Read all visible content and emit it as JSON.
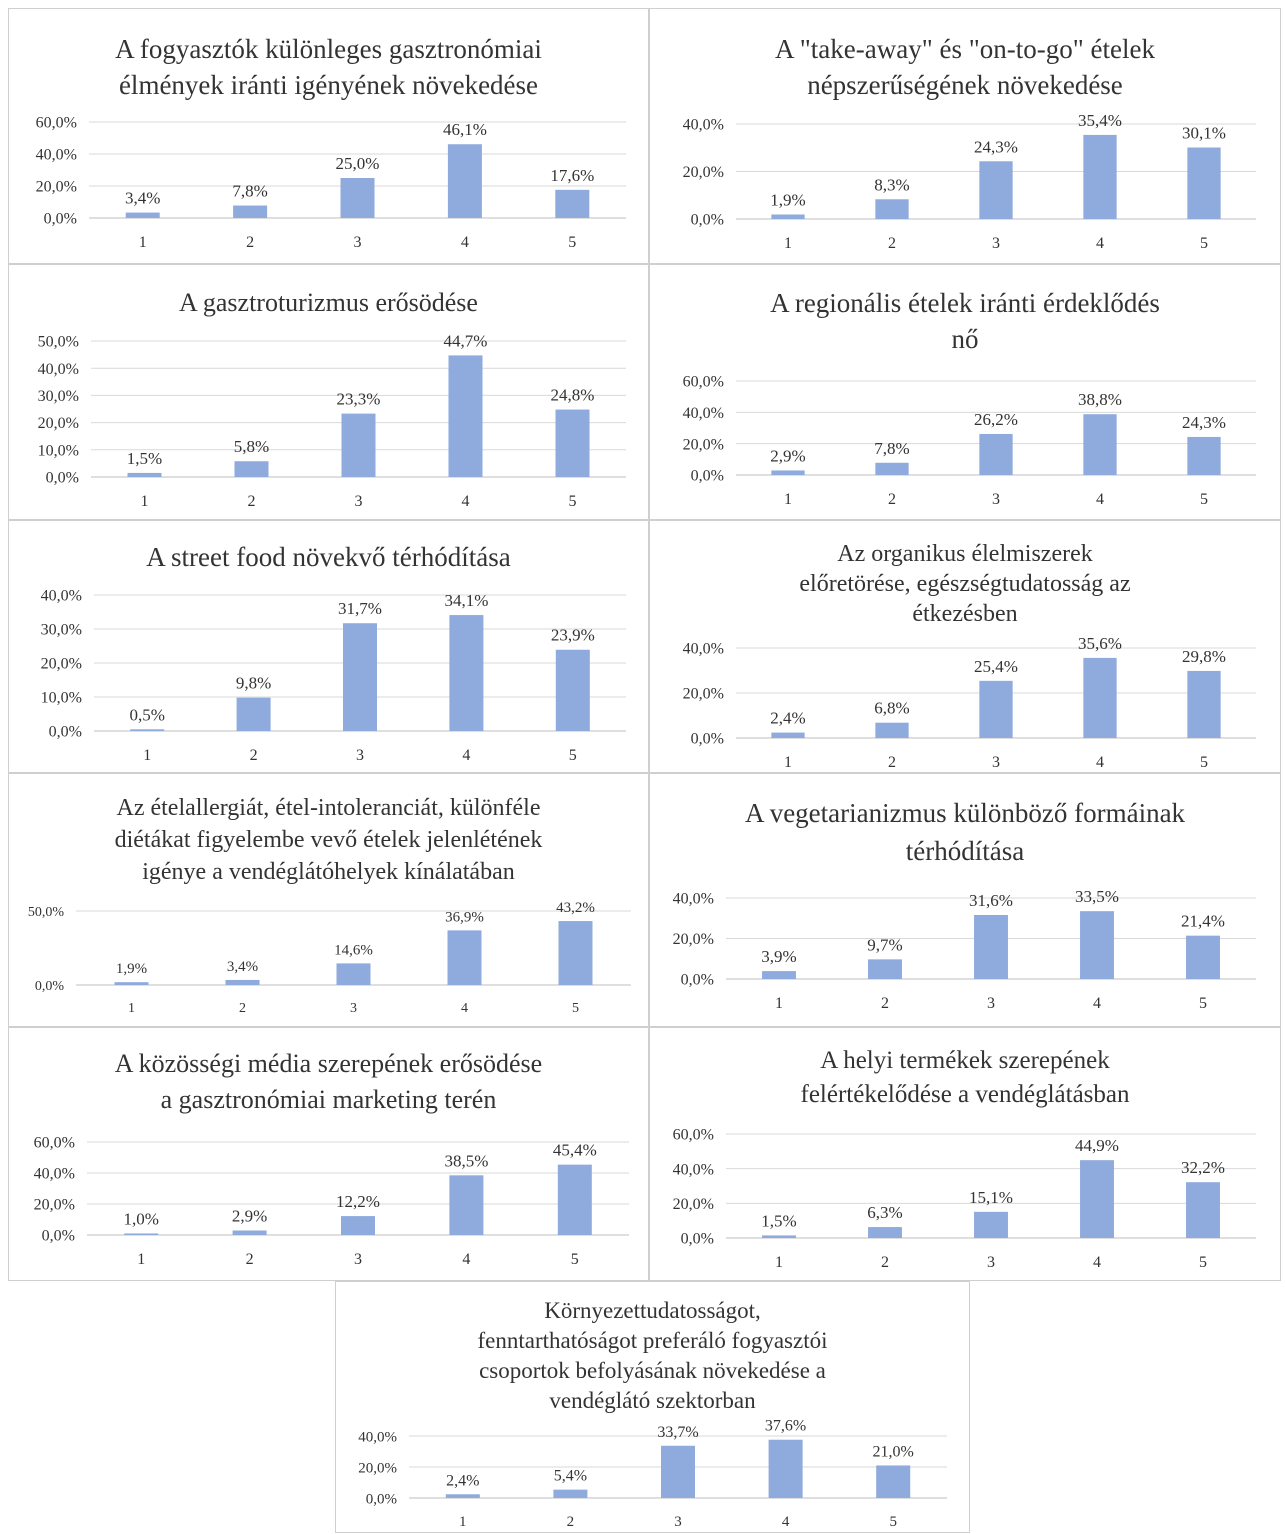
{
  "chart_data": [
    {
      "type": "bar",
      "title_lines": [
        "A fogyasztók különleges gasztronómiai",
        "élmények iránti igényének növekedése"
      ],
      "categories": [
        "1",
        "2",
        "3",
        "4",
        "5"
      ],
      "values": [
        3.4,
        7.8,
        25.0,
        46.1,
        17.6
      ],
      "value_labels": [
        "3,4%",
        "7,8%",
        "25,0%",
        "46,1%",
        "17,6%"
      ],
      "y_ticks": [
        "0,0%",
        "20,0%",
        "40,0%",
        "60,0%"
      ],
      "ylim": [
        0,
        60
      ],
      "grid": true,
      "bar_color": "#8faadc"
    },
    {
      "type": "bar",
      "title_lines": [
        "A \"take-away\"  és \"on-to-go\"  ételek",
        "népszerűségének  növekedése"
      ],
      "categories": [
        "1",
        "2",
        "3",
        "4",
        "5"
      ],
      "values": [
        1.9,
        8.3,
        24.3,
        35.4,
        30.1
      ],
      "value_labels": [
        "1,9%",
        "8,3%",
        "24,3%",
        "35,4%",
        "30,1%"
      ],
      "y_ticks": [
        "0,0%",
        "20,0%",
        "40,0%"
      ],
      "ylim": [
        0,
        40
      ],
      "grid": true,
      "bar_color": "#8faadc"
    },
    {
      "type": "bar",
      "title_lines": [
        "A gasztroturizmus  erősödése"
      ],
      "categories": [
        "1",
        "2",
        "3",
        "4",
        "5"
      ],
      "values": [
        1.5,
        5.8,
        23.3,
        44.7,
        24.8
      ],
      "value_labels": [
        "1,5%",
        "5,8%",
        "23,3%",
        "44,7%",
        "24,8%"
      ],
      "y_ticks": [
        "0,0%",
        "10,0%",
        "20,0%",
        "30,0%",
        "40,0%",
        "50,0%"
      ],
      "ylim": [
        0,
        50
      ],
      "grid": true,
      "bar_color": "#8faadc"
    },
    {
      "type": "bar",
      "title_lines": [
        "A regionális  ételek  iránti  érdeklődés",
        "nő"
      ],
      "categories": [
        "1",
        "2",
        "3",
        "4",
        "5"
      ],
      "values": [
        2.9,
        7.8,
        26.2,
        38.8,
        24.3
      ],
      "value_labels": [
        "2,9%",
        "7,8%",
        "26,2%",
        "38,8%",
        "24,3%"
      ],
      "y_ticks": [
        "0,0%",
        "20,0%",
        "40,0%",
        "60,0%"
      ],
      "ylim": [
        0,
        60
      ],
      "grid": true,
      "bar_color": "#8faadc"
    },
    {
      "type": "bar",
      "title_lines": [
        "A street food növekvő térhódítása"
      ],
      "categories": [
        "1",
        "2",
        "3",
        "4",
        "5"
      ],
      "values": [
        0.5,
        9.8,
        31.7,
        34.1,
        23.9
      ],
      "value_labels": [
        "0,5%",
        "9,8%",
        "31,7%",
        "34,1%",
        "23,9%"
      ],
      "y_ticks": [
        "0,0%",
        "10,0%",
        "20,0%",
        "30,0%",
        "40,0%"
      ],
      "ylim": [
        0,
        40
      ],
      "grid": true,
      "bar_color": "#8faadc"
    },
    {
      "type": "bar",
      "title_lines": [
        "Az organikus  élelmiszerek",
        "előretörése,  egészségtudatosság  az",
        "étkezésben"
      ],
      "categories": [
        "1",
        "2",
        "3",
        "4",
        "5"
      ],
      "values": [
        2.4,
        6.8,
        25.4,
        35.6,
        29.8
      ],
      "value_labels": [
        "2,4%",
        "6,8%",
        "25,4%",
        "35,6%",
        "29,8%"
      ],
      "y_ticks": [
        "0,0%",
        "20,0%",
        "40,0%"
      ],
      "ylim": [
        0,
        40
      ],
      "grid": true,
      "bar_color": "#8faadc"
    },
    {
      "type": "bar",
      "title_lines": [
        "Az ételallergiát, étel-intoleranciát, különféle",
        "diétákat figyelembe vevő ételek jelenlétének",
        "igénye a vendéglátóhelyek kínálatában"
      ],
      "categories": [
        "1",
        "2",
        "3",
        "4",
        "5"
      ],
      "values": [
        1.9,
        3.4,
        14.6,
        36.9,
        43.2
      ],
      "value_labels": [
        "1,9%",
        "3,4%",
        "14,6%",
        "36,9%",
        "43,2%"
      ],
      "y_ticks": [
        "0,0%",
        "50,0%"
      ],
      "ylim": [
        0,
        50
      ],
      "grid": true,
      "bar_color": "#8faadc"
    },
    {
      "type": "bar",
      "title_lines": [
        "A vegetarianizmus különböző formáinak",
        "térhódítása"
      ],
      "categories": [
        "1",
        "2",
        "3",
        "4",
        "5"
      ],
      "values": [
        3.9,
        9.7,
        31.6,
        33.5,
        21.4
      ],
      "value_labels": [
        "3,9%",
        "9,7%",
        "31,6%",
        "33,5%",
        "21,4%"
      ],
      "y_ticks": [
        "0,0%",
        "20,0%",
        "40,0%"
      ],
      "ylim": [
        0,
        40
      ],
      "grid": true,
      "bar_color": "#8faadc"
    },
    {
      "type": "bar",
      "title_lines": [
        "A közösségi média szerepének erősödése",
        "a gasztronómiai  marketing  terén"
      ],
      "categories": [
        "1",
        "2",
        "3",
        "4",
        "5"
      ],
      "values": [
        1.0,
        2.9,
        12.2,
        38.5,
        45.4
      ],
      "value_labels": [
        "1,0%",
        "2,9%",
        "12,2%",
        "38,5%",
        "45,4%"
      ],
      "y_ticks": [
        "0,0%",
        "20,0%",
        "40,0%",
        "60,0%"
      ],
      "ylim": [
        0,
        60
      ],
      "grid": true,
      "bar_color": "#8faadc"
    },
    {
      "type": "bar",
      "title_lines": [
        "A helyi termékek szerepének",
        "felértékelődése  a vendéglátásban"
      ],
      "categories": [
        "1",
        "2",
        "3",
        "4",
        "5"
      ],
      "values": [
        1.5,
        6.3,
        15.1,
        44.9,
        32.2
      ],
      "value_labels": [
        "1,5%",
        "6,3%",
        "15,1%",
        "44,9%",
        "32,2%"
      ],
      "y_ticks": [
        "0,0%",
        "20,0%",
        "40,0%",
        "60,0%"
      ],
      "ylim": [
        0,
        60
      ],
      "grid": true,
      "bar_color": "#8faadc"
    },
    {
      "type": "bar",
      "title_lines": [
        "Környezettudatosságot,",
        "fenntarthatóságot  preferáló  fogyasztói",
        "csoportok  befolyásának  növekedése  a",
        "vendéglátó  szektorban"
      ],
      "categories": [
        "1",
        "2",
        "3",
        "4",
        "5"
      ],
      "values": [
        2.4,
        5.4,
        33.7,
        37.6,
        21.0
      ],
      "value_labels": [
        "2,4%",
        "5,4%",
        "33,7%",
        "37,6%",
        "21,0%"
      ],
      "y_ticks": [
        "0,0%",
        "20,0%",
        "40,0%"
      ],
      "ylim": [
        0,
        40
      ],
      "grid": true,
      "bar_color": "#8faadc"
    }
  ]
}
